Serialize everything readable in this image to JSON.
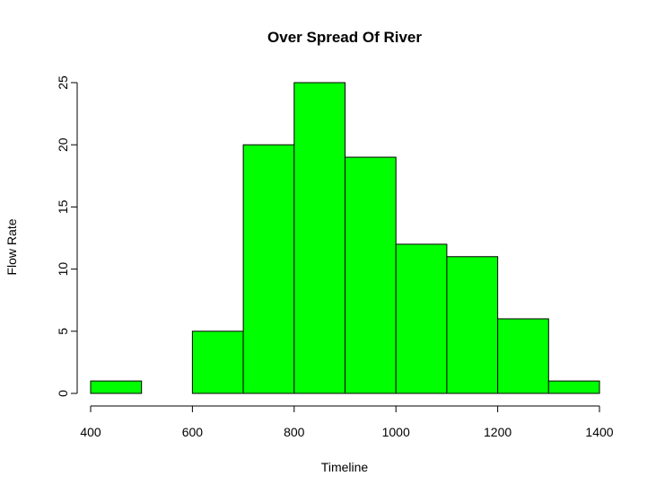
{
  "chart_data": {
    "type": "bar",
    "title": "Over Spread Of River",
    "xlabel": "Timeline",
    "ylabel": "Flow Rate",
    "bar_color": "#00FF00",
    "bins": [
      {
        "from": 400,
        "to": 500,
        "value": 1
      },
      {
        "from": 500,
        "to": 600,
        "value": 0
      },
      {
        "from": 600,
        "to": 700,
        "value": 5
      },
      {
        "from": 700,
        "to": 800,
        "value": 20
      },
      {
        "from": 800,
        "to": 900,
        "value": 25
      },
      {
        "from": 900,
        "to": 1000,
        "value": 19
      },
      {
        "from": 1000,
        "to": 1100,
        "value": 12
      },
      {
        "from": 1100,
        "to": 1200,
        "value": 11
      },
      {
        "from": 1200,
        "to": 1300,
        "value": 6
      },
      {
        "from": 1300,
        "to": 1400,
        "value": 1
      }
    ],
    "xlim": [
      400,
      1400
    ],
    "ylim": [
      0,
      25
    ],
    "x_ticks": [
      "400",
      "600",
      "800",
      "1000",
      "1200",
      "1400"
    ],
    "y_ticks": [
      "0",
      "5",
      "10",
      "15",
      "20",
      "25"
    ],
    "grid": false,
    "legend": "none"
  }
}
